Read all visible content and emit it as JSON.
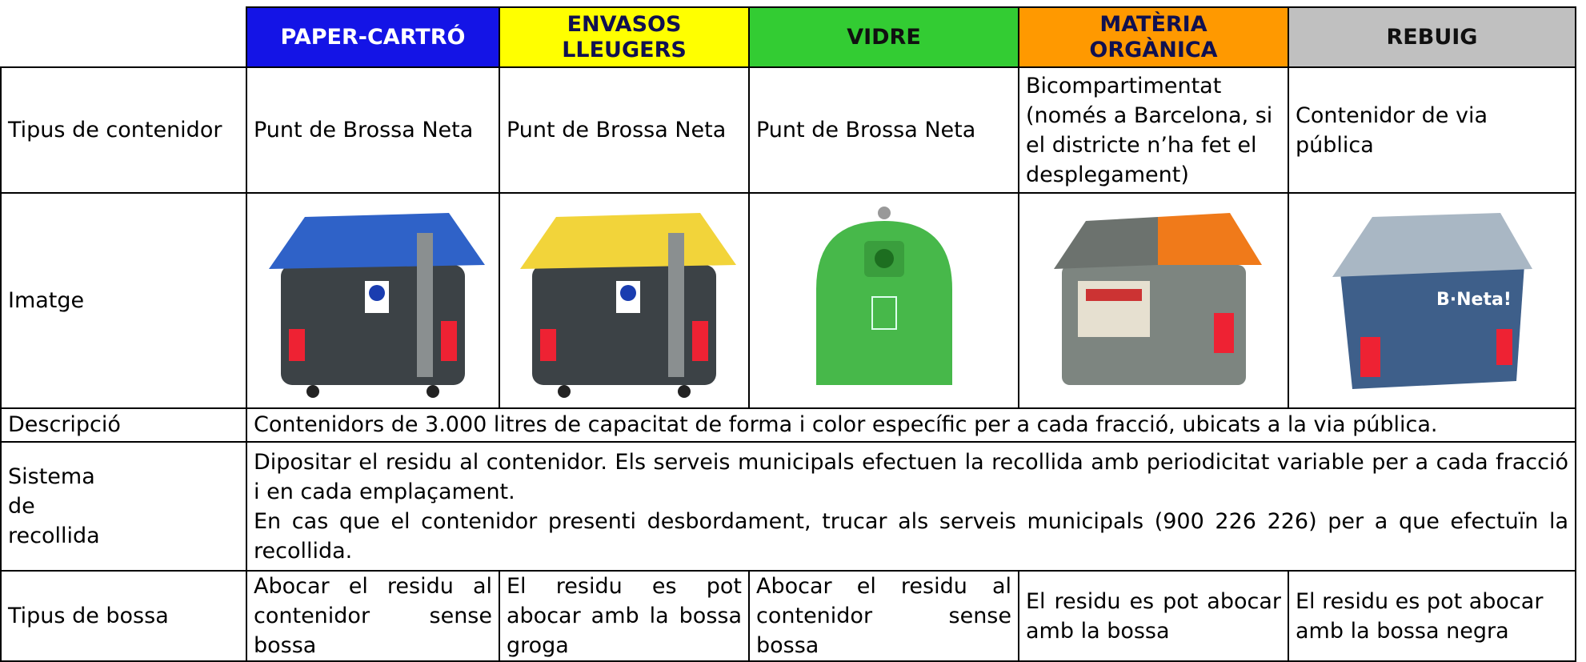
{
  "header": {
    "columns": [
      "PAPER-CARTRÓ",
      "ENVASOS LLEUGERS",
      "VIDRE",
      "MATÈRIA ORGÀNICA",
      "REBUIG"
    ]
  },
  "table": {
    "rows": [
      {
        "label": "Tipus de contenidor",
        "cells": [
          "Punt de Brossa Neta",
          "Punt de Brossa Neta",
          "Punt de Brossa Neta",
          "Bicompartimentat (només a Barcelona, si el districte n’ha fet el desplegament)",
          "Contenidor de via pública"
        ]
      },
      {
        "label": "Imatge"
      },
      {
        "label": "Descripció",
        "text": "Contenidors de 3.000 litres de capacitat de forma i color específic per a cada fracció, ubicats a la via pública."
      },
      {
        "label": "Sistema de recollida",
        "paragraphs": [
          "Dipositar el residu al contenidor. Els serveis municipals efectuen la recollida amb periodicitat variable per a cada fracció i en cada emplaçament.",
          "En cas que el contenidor presenti desbordament, trucar als serveis municipals (900 226 226) per a que efectuïn la recollida."
        ]
      },
      {
        "label": "Tipus de bossa",
        "cells": [
          "Abocar el residu al contenidor sense bossa",
          "El residu es pot abocar amb la bossa groga",
          "Abocar el residu al contenidor sense bossa",
          "El residu es pot abocar amb la bossa",
          "El residu es pot abocar amb la bossa negra"
        ]
      }
    ]
  }
}
